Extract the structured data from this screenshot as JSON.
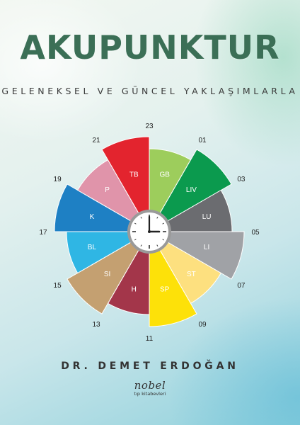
{
  "cover": {
    "title": "AKUPUNKTUR",
    "subtitle": "GELENEKSEL VE GÜNCEL YAKLAŞIMLARLA",
    "author": "DR. DEMET ERDOĞAN",
    "publisher": "nobel",
    "publisher_sub": "tıp kitabevleri"
  },
  "meridian_clock": {
    "segments": [
      {
        "label": "GB",
        "color": "#9dcd5c",
        "extended": false
      },
      {
        "label": "LIV",
        "color": "#0b9a4e",
        "extended": true
      },
      {
        "label": "LU",
        "color": "#6b6c70",
        "extended": false
      },
      {
        "label": "LI",
        "color": "#a0a2a6",
        "extended": true
      },
      {
        "label": "ST",
        "color": "#fde07f",
        "extended": false
      },
      {
        "label": "SP",
        "color": "#fde109",
        "extended": true
      },
      {
        "label": "H",
        "color": "#a3364a",
        "extended": false
      },
      {
        "label": "SI",
        "color": "#c4a071",
        "extended": true
      },
      {
        "label": "BL",
        "color": "#2fb6e4",
        "extended": false
      },
      {
        "label": "K",
        "color": "#1e80c4",
        "extended": true
      },
      {
        "label": "P",
        "color": "#e094aa",
        "extended": false
      },
      {
        "label": "TB",
        "color": "#e3242e",
        "extended": true
      }
    ],
    "hour_labels": [
      "23",
      "01",
      "03",
      "05",
      "07",
      "09",
      "11",
      "13",
      "15",
      "17",
      "19",
      "21"
    ]
  }
}
